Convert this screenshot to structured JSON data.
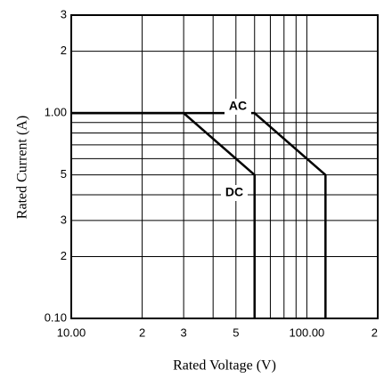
{
  "chart_data": {
    "type": "line",
    "xlabel": "Rated Voltage (V)",
    "ylabel": "Rated Current (A)",
    "xscale": "log",
    "yscale": "log",
    "grid": true,
    "xlim": [
      10,
      200
    ],
    "ylim": [
      0.1,
      3
    ],
    "xticks": [
      {
        "value": 10,
        "label": "10.00"
      },
      {
        "value": 20,
        "label": "2"
      },
      {
        "value": 30,
        "label": "3"
      },
      {
        "value": 50,
        "label": "5"
      },
      {
        "value": 100,
        "label": "100.00"
      },
      {
        "value": 200,
        "label": "2"
      }
    ],
    "yticks": [
      {
        "value": 0.1,
        "label": "0.10"
      },
      {
        "value": 0.2,
        "label": "2"
      },
      {
        "value": 0.3,
        "label": "3"
      },
      {
        "value": 0.5,
        "label": "5"
      },
      {
        "value": 1,
        "label": "1.00"
      },
      2,
      3
    ],
    "xminor": [
      40,
      60,
      70,
      80,
      90
    ],
    "yminor": [
      0.4,
      0.6,
      0.7,
      0.8,
      0.9
    ],
    "series": [
      {
        "name": "AC",
        "color": "#000000",
        "x": [
          10,
          60,
          120,
          120
        ],
        "values": [
          1,
          1,
          0.5,
          0.1
        ]
      },
      {
        "name": "DC",
        "color": "#000000",
        "x": [
          10,
          30,
          60,
          60
        ],
        "values": [
          1,
          1,
          0.5,
          0.1
        ]
      }
    ]
  }
}
